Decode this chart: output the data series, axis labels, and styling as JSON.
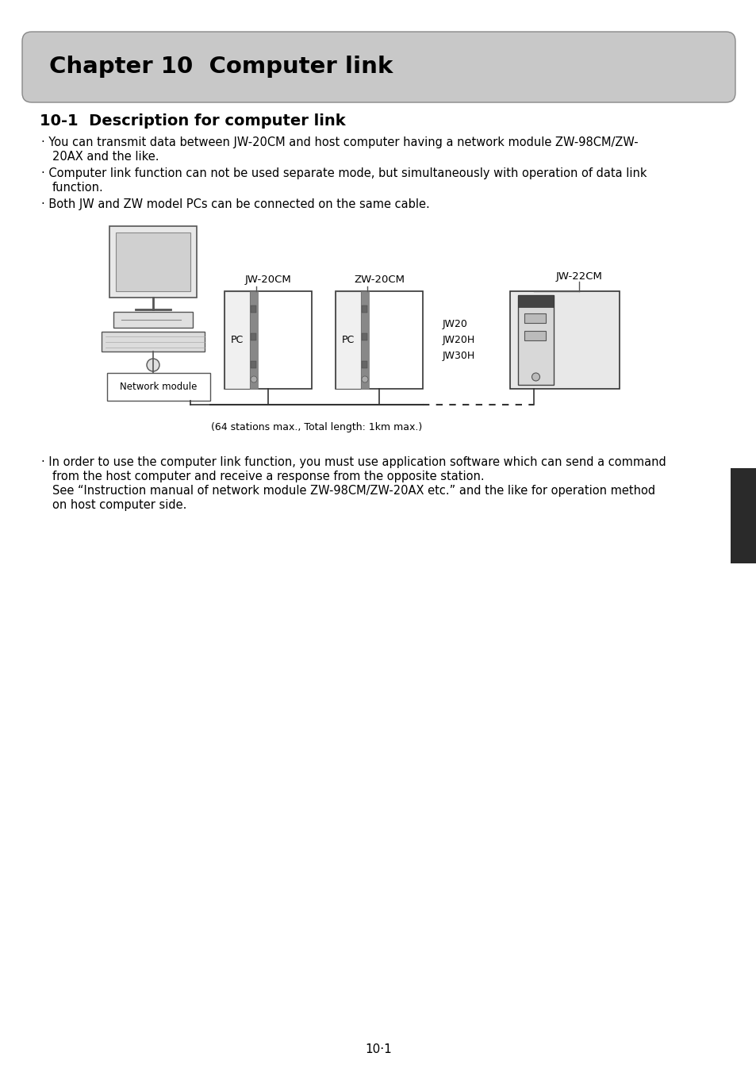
{
  "title": "Chapter 10  Computer link",
  "section_title": "10-1  Description for computer link",
  "bullet1_line1": "· You can transmit data between JW-20CM and host computer having a network module ZW-98CM/ZW-",
  "bullet1_line2": "20AX and the like.",
  "bullet2_line1": "· Computer link function can not be used separate mode, but simultaneously with operation of data link",
  "bullet2_line2": "function.",
  "bullet3": "· Both JW and ZW model PCs can be connected on the same cable.",
  "diagram_label_jw20cm": "JW-20CM",
  "diagram_label_zw20cm": "ZW-20CM",
  "diagram_label_jw22cm": "JW-22CM",
  "diagram_label_pc1": "PC",
  "diagram_label_pc2": "PC",
  "diagram_label_network": "Network module",
  "diagram_label_jw20": "JW20",
  "diagram_label_jw20h": "JW20H",
  "diagram_label_jw30h": "JW30H",
  "diagram_cable_note": "(64 stations max., Total length: 1km max.)",
  "bullet4_line1": "· In order to use the computer link function, you must use application software which can send a command",
  "bullet4_line2": "from the host computer and receive a response from the opposite station.",
  "bullet4_line3": "See “Instruction manual of network module ZW-98CM/ZW-20AX etc.” and the like for operation method",
  "bullet4_line4": "on host computer side.",
  "page_number": "10·1",
  "bg_color": "#ffffff",
  "title_bg_color": "#c8c8c8",
  "text_color": "#000000",
  "dark_tab_color": "#2a2a2a"
}
